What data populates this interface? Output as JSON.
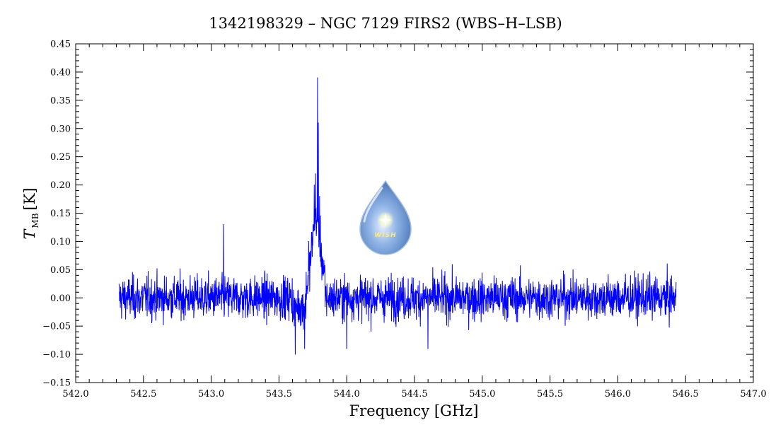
{
  "chart_data": {
    "type": "line",
    "title": "1342198329 – NGC 7129 FIRS2 (WBS–H–LSB)",
    "xlabel": "Frequency [GHz]",
    "ylabel_main": "T",
    "ylabel_sub": "MB",
    "ylabel_unit": "[K]",
    "xlim": [
      542.0,
      547.0
    ],
    "ylim": [
      -0.15,
      0.45
    ],
    "x_ticks": [
      542.0,
      542.5,
      543.0,
      543.5,
      544.0,
      544.5,
      545.0,
      545.5,
      546.0,
      546.5,
      547.0
    ],
    "x_tick_labels": [
      "542.0",
      "542.5",
      "543.0",
      "543.5",
      "544.0",
      "544.5",
      "545.0",
      "545.5",
      "546.0",
      "546.5",
      "547.0"
    ],
    "y_ticks": [
      -0.15,
      -0.1,
      -0.05,
      0.0,
      0.05,
      0.1,
      0.15,
      0.2,
      0.25,
      0.3,
      0.35,
      0.4,
      0.45
    ],
    "y_tick_labels": [
      "−0.15",
      "−0.10",
      "−0.05",
      "0.00",
      "0.05",
      "0.10",
      "0.15",
      "0.20",
      "0.25",
      "0.30",
      "0.35",
      "0.40",
      "0.45"
    ],
    "grid": false,
    "series": [
      {
        "color": "#0000ff",
        "x_range": [
          542.32,
          546.43
        ],
        "baseline": 0.0,
        "noise_rms": 0.025,
        "features": [
          {
            "x": 543.09,
            "y": 0.13
          },
          {
            "x": 543.62,
            "y": -0.1
          },
          {
            "x": 543.69,
            "y": -0.09
          },
          {
            "x": 543.72,
            "y": 0.1
          },
          {
            "x": 543.76,
            "y": 0.2
          },
          {
            "x": 543.77,
            "y": 0.22
          },
          {
            "x": 543.785,
            "y": 0.39
          },
          {
            "x": 543.79,
            "y": 0.31
          },
          {
            "x": 543.8,
            "y": 0.18
          },
          {
            "x": 544.0,
            "y": -0.09
          },
          {
            "x": 544.6,
            "y": -0.09
          }
        ]
      }
    ]
  },
  "logo": {
    "text": "WISH"
  }
}
